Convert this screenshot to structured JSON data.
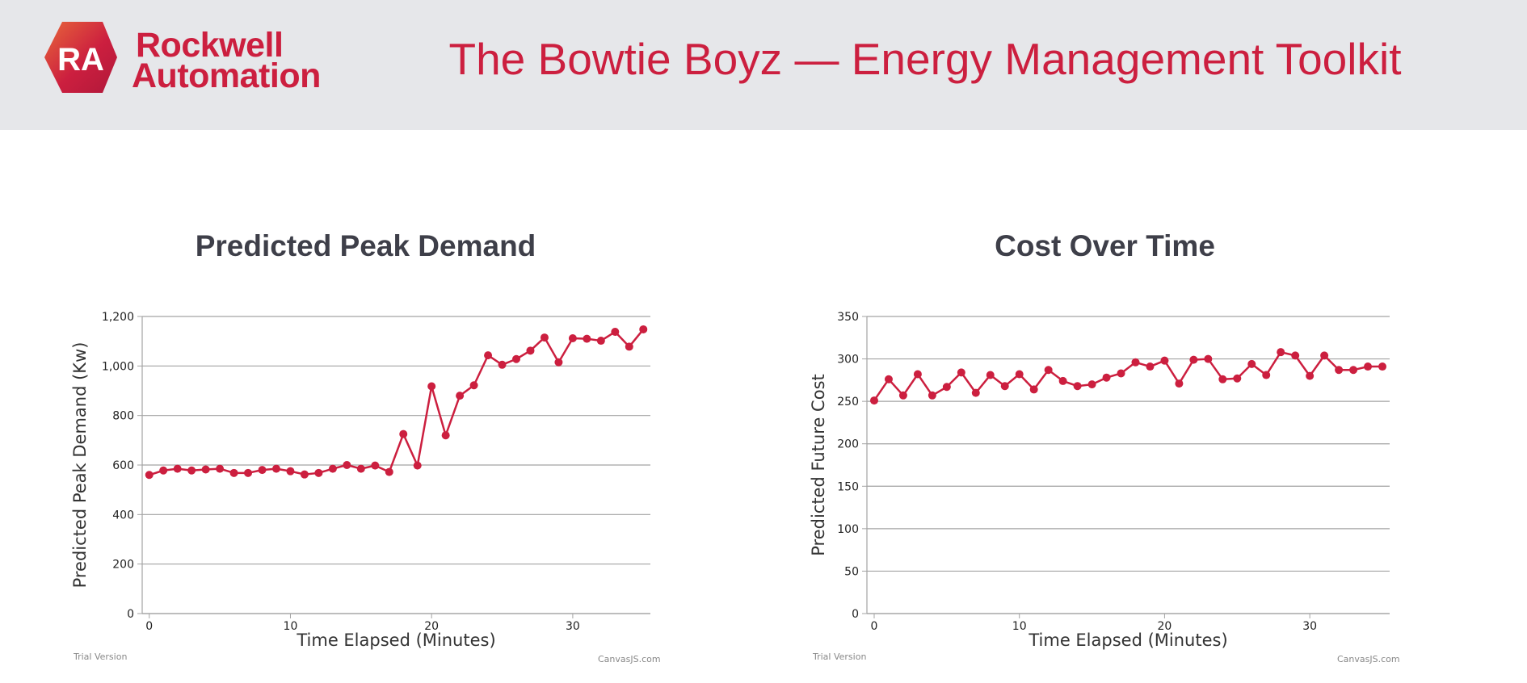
{
  "header": {
    "brand_line1": "Rockwell",
    "brand_line2": "Automation",
    "logo_mark": "RA",
    "app_title": "The Bowtie Boyz — Energy Management Toolkit"
  },
  "colors": {
    "accent": "#cc1f3f",
    "header_bg": "#e6e7ea",
    "title_text": "#3e3f49",
    "gridline": "#999999"
  },
  "chart_data": [
    {
      "type": "line",
      "title": "Predicted Peak Demand",
      "xlabel": "Time Elapsed (Minutes)",
      "ylabel": "Predicted Peak Demand (Kw)",
      "xlim": [
        -0.5,
        35.5
      ],
      "ylim": [
        0,
        1200
      ],
      "x_ticks": [
        0,
        10,
        20,
        30
      ],
      "y_ticks": [
        0,
        200,
        400,
        600,
        800,
        1000,
        1200
      ],
      "y_tick_labels": [
        "0",
        "200",
        "400",
        "600",
        "800",
        "1,000",
        "1,200"
      ],
      "grid": true,
      "series": [
        {
          "color": "#cc1f3f",
          "x": [
            0,
            1,
            2,
            3,
            4,
            5,
            6,
            7,
            8,
            9,
            10,
            11,
            12,
            13,
            14,
            15,
            16,
            17,
            18,
            19,
            20,
            21,
            22,
            23,
            24,
            25,
            26,
            27,
            28,
            29,
            30,
            31,
            32,
            33,
            34,
            35
          ],
          "y": [
            560,
            578,
            585,
            578,
            582,
            585,
            568,
            568,
            580,
            585,
            575,
            562,
            568,
            585,
            600,
            585,
            598,
            572,
            725,
            598,
            918,
            720,
            880,
            922,
            1043,
            1005,
            1028,
            1062,
            1115,
            1015,
            1112,
            1110,
            1102,
            1138,
            1078,
            1148
          ]
        }
      ],
      "watermark_left": "Trial Version",
      "watermark_right": "CanvasJS.com"
    },
    {
      "type": "line",
      "title": "Cost Over Time",
      "xlabel": "Time Elapsed (Minutes)",
      "ylabel": "Predicted Future Cost",
      "xlim": [
        -0.5,
        35.5
      ],
      "ylim": [
        0,
        350
      ],
      "x_ticks": [
        0,
        10,
        20,
        30
      ],
      "y_ticks": [
        0,
        50,
        100,
        150,
        200,
        250,
        300,
        350
      ],
      "y_tick_labels": [
        "0",
        "50",
        "100",
        "150",
        "200",
        "250",
        "300",
        "350"
      ],
      "grid": true,
      "series": [
        {
          "color": "#cc1f3f",
          "x": [
            0,
            1,
            2,
            3,
            4,
            5,
            6,
            7,
            8,
            9,
            10,
            11,
            12,
            13,
            14,
            15,
            16,
            17,
            18,
            19,
            20,
            21,
            22,
            23,
            24,
            25,
            26,
            27,
            28,
            29,
            30,
            31,
            32,
            33,
            34,
            35
          ],
          "y": [
            251,
            276,
            257,
            282,
            257,
            267,
            284,
            260,
            281,
            268,
            282,
            264,
            287,
            274,
            268,
            270,
            278,
            283,
            296,
            291,
            298,
            271,
            299,
            300,
            276,
            277,
            294,
            281,
            308,
            304,
            280,
            304,
            287,
            287,
            291,
            291
          ]
        }
      ],
      "watermark_left": "Trial Version",
      "watermark_right": "CanvasJS.com"
    }
  ]
}
